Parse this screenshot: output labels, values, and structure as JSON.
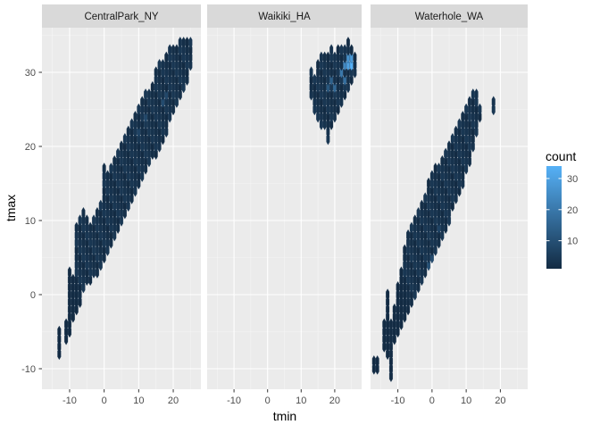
{
  "chart_data": {
    "type": "heatmap",
    "subtype": "hexbin-facets",
    "xlabel": "tmin",
    "ylabel": "tmax",
    "xlim": [
      -18,
      28
    ],
    "ylim": [
      -12,
      36
    ],
    "x_ticks": [
      -10,
      0,
      10,
      20
    ],
    "y_ticks": [
      -10,
      0,
      10,
      20,
      30
    ],
    "x_tick_labels": [
      "-10",
      "0",
      "10",
      "20"
    ],
    "y_tick_labels": [
      "-10",
      "0",
      "10",
      "20",
      "30"
    ],
    "grid": true,
    "legend": {
      "title": "count",
      "position": "right",
      "ticks": [
        10,
        20,
        30
      ],
      "tick_labels": [
        "10",
        "20",
        "30"
      ],
      "range": [
        1,
        34
      ],
      "color_low": "#132B43",
      "color_high": "#56B1F7"
    },
    "facets": [
      {
        "label": "CentralPark_NY",
        "bands": [
          {
            "x": -13,
            "ymin": -8,
            "ymax": -5
          },
          {
            "x": -11,
            "ymin": -6,
            "ymax": -4
          },
          {
            "x": -10,
            "ymin": -5,
            "ymax": 3
          },
          {
            "x": -9,
            "ymin": -3,
            "ymax": 2
          },
          {
            "x": -8,
            "ymin": -2,
            "ymax": 9
          },
          {
            "x": -7,
            "ymin": -1,
            "ymax": 10
          },
          {
            "x": -6,
            "ymin": 1,
            "ymax": 11
          },
          {
            "x": -5,
            "ymin": 2,
            "ymax": 10
          },
          {
            "x": -4,
            "ymin": 2,
            "ymax": 9
          },
          {
            "x": -3,
            "ymin": 3,
            "ymax": 10
          },
          {
            "x": -2,
            "ymin": 3,
            "ymax": 11
          },
          {
            "x": -1,
            "ymin": 4,
            "ymax": 12
          },
          {
            "x": 0,
            "ymin": 5,
            "ymax": 17
          },
          {
            "x": 1,
            "ymin": 6,
            "ymax": 16
          },
          {
            "x": 2,
            "ymin": 7,
            "ymax": 17
          },
          {
            "x": 3,
            "ymin": 8,
            "ymax": 18
          },
          {
            "x": 4,
            "ymin": 9,
            "ymax": 19
          },
          {
            "x": 5,
            "ymin": 10,
            "ymax": 20
          },
          {
            "x": 6,
            "ymin": 11,
            "ymax": 21
          },
          {
            "x": 7,
            "ymin": 12,
            "ymax": 22
          },
          {
            "x": 8,
            "ymin": 13,
            "ymax": 23
          },
          {
            "x": 9,
            "ymin": 14,
            "ymax": 24
          },
          {
            "x": 10,
            "ymin": 15,
            "ymax": 25
          },
          {
            "x": 11,
            "ymin": 16,
            "ymax": 26
          },
          {
            "x": 12,
            "ymin": 17,
            "ymax": 27
          },
          {
            "x": 13,
            "ymin": 18,
            "ymax": 27
          },
          {
            "x": 14,
            "ymin": 19,
            "ymax": 28
          },
          {
            "x": 15,
            "ymin": 19,
            "ymax": 30
          },
          {
            "x": 16,
            "ymin": 20,
            "ymax": 31
          },
          {
            "x": 17,
            "ymin": 21,
            "ymax": 31
          },
          {
            "x": 18,
            "ymin": 22,
            "ymax": 32
          },
          {
            "x": 19,
            "ymin": 24,
            "ymax": 33
          },
          {
            "x": 20,
            "ymin": 25,
            "ymax": 33
          },
          {
            "x": 21,
            "ymin": 26,
            "ymax": 33
          },
          {
            "x": 22,
            "ymin": 27,
            "ymax": 34
          },
          {
            "x": 23,
            "ymin": 28,
            "ymax": 34
          },
          {
            "x": 24,
            "ymin": 29,
            "ymax": 34
          },
          {
            "x": 25,
            "ymin": 31,
            "ymax": 34
          }
        ],
        "hotspots": [
          {
            "x": 10,
            "y": 22,
            "count": 7
          },
          {
            "x": 12,
            "y": 24,
            "count": 8
          },
          {
            "x": 17,
            "y": 26,
            "count": 9
          },
          {
            "x": 18,
            "y": 27,
            "count": 8
          }
        ]
      },
      {
        "label": "Waikiki_HA",
        "bands": [
          {
            "x": 13,
            "ymin": 27,
            "ymax": 30
          },
          {
            "x": 14,
            "ymin": 25,
            "ymax": 29
          },
          {
            "x": 15,
            "ymin": 24,
            "ymax": 31
          },
          {
            "x": 16,
            "ymin": 23,
            "ymax": 32
          },
          {
            "x": 17,
            "ymin": 23,
            "ymax": 32
          },
          {
            "x": 18,
            "ymin": 21,
            "ymax": 32
          },
          {
            "x": 19,
            "ymin": 23,
            "ymax": 33
          },
          {
            "x": 20,
            "ymin": 24,
            "ymax": 32
          },
          {
            "x": 21,
            "ymin": 25,
            "ymax": 33
          },
          {
            "x": 22,
            "ymin": 26,
            "ymax": 33
          },
          {
            "x": 23,
            "ymin": 27,
            "ymax": 33
          },
          {
            "x": 24,
            "ymin": 28,
            "ymax": 34
          },
          {
            "x": 25,
            "ymin": 29,
            "ymax": 33
          },
          {
            "x": 26,
            "ymin": 30,
            "ymax": 32
          }
        ],
        "hotspots": [
          {
            "x": 18,
            "y": 28,
            "count": 12
          },
          {
            "x": 19,
            "y": 29,
            "count": 14
          },
          {
            "x": 20,
            "y": 28,
            "count": 16
          },
          {
            "x": 22,
            "y": 30,
            "count": 20
          },
          {
            "x": 23,
            "y": 29,
            "count": 18
          },
          {
            "x": 23,
            "y": 31,
            "count": 24
          },
          {
            "x": 24,
            "y": 31,
            "count": 30
          },
          {
            "x": 25,
            "y": 31,
            "count": 34
          },
          {
            "x": 25,
            "y": 32,
            "count": 28
          },
          {
            "x": 24,
            "y": 32,
            "count": 26
          }
        ]
      },
      {
        "label": "Waterhole_WA",
        "bands": [
          {
            "x": -17,
            "ymin": -10,
            "ymax": -9
          },
          {
            "x": -16,
            "ymin": -10,
            "ymax": -9
          },
          {
            "x": -14,
            "ymin": -7,
            "ymax": -4
          },
          {
            "x": -13,
            "ymin": -8,
            "ymax": 0
          },
          {
            "x": -12,
            "ymin": -11,
            "ymax": -4
          },
          {
            "x": -11,
            "ymin": -6,
            "ymax": -2
          },
          {
            "x": -10,
            "ymin": -5,
            "ymax": 1
          },
          {
            "x": -9,
            "ymin": -4,
            "ymax": 3
          },
          {
            "x": -8,
            "ymin": -3,
            "ymax": 6
          },
          {
            "x": -7,
            "ymin": -2,
            "ymax": 8
          },
          {
            "x": -6,
            "ymin": -1,
            "ymax": 9
          },
          {
            "x": -5,
            "ymin": 0,
            "ymax": 10
          },
          {
            "x": -4,
            "ymin": 1,
            "ymax": 11
          },
          {
            "x": -3,
            "ymin": 2,
            "ymax": 12
          },
          {
            "x": -2,
            "ymin": 3,
            "ymax": 13
          },
          {
            "x": -1,
            "ymin": 4,
            "ymax": 15
          },
          {
            "x": 0,
            "ymin": 5,
            "ymax": 16
          },
          {
            "x": 1,
            "ymin": 6,
            "ymax": 17
          },
          {
            "x": 2,
            "ymin": 7,
            "ymax": 17
          },
          {
            "x": 3,
            "ymin": 8,
            "ymax": 18
          },
          {
            "x": 4,
            "ymin": 9,
            "ymax": 19
          },
          {
            "x": 5,
            "ymin": 10,
            "ymax": 20
          },
          {
            "x": 6,
            "ymin": 12,
            "ymax": 21
          },
          {
            "x": 7,
            "ymin": 13,
            "ymax": 22
          },
          {
            "x": 8,
            "ymin": 14,
            "ymax": 23
          },
          {
            "x": 9,
            "ymin": 15,
            "ymax": 24
          },
          {
            "x": 10,
            "ymin": 17,
            "ymax": 25
          },
          {
            "x": 11,
            "ymin": 18,
            "ymax": 26
          },
          {
            "x": 12,
            "ymin": 20,
            "ymax": 27
          },
          {
            "x": 13,
            "ymin": 22,
            "ymax": 27
          },
          {
            "x": 14,
            "ymin": 24,
            "ymax": 25
          },
          {
            "x": 18,
            "ymin": 25,
            "ymax": 26
          }
        ],
        "hotspots": [
          {
            "x": -1,
            "y": 4,
            "count": 10
          },
          {
            "x": 0,
            "y": 5,
            "count": 9
          },
          {
            "x": 2,
            "y": 9,
            "count": 7
          }
        ]
      }
    ]
  }
}
